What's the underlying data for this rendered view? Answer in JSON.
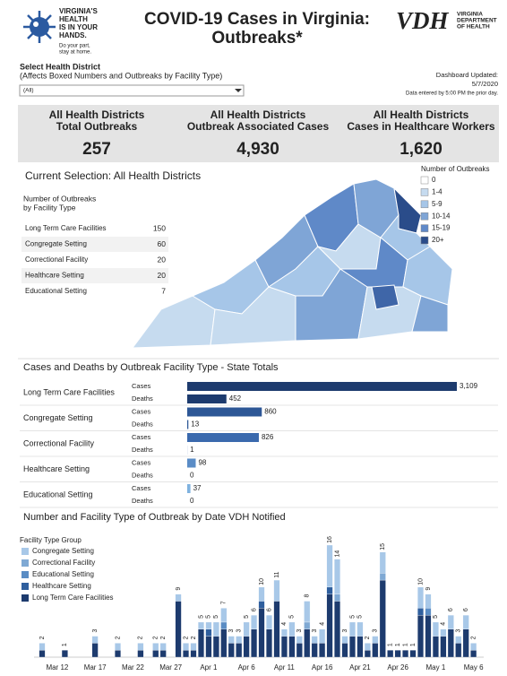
{
  "header": {
    "logo_lines": [
      "VIRGINIA'S",
      "HEALTH",
      "IS IN YOUR",
      "HANDS."
    ],
    "logo_tagline": [
      "Do your part,",
      "stay at home."
    ],
    "title_lines": [
      "COVID-19 Cases in Virginia:",
      "Outbreaks*"
    ],
    "vdh_logo": "VDH",
    "vdh_name": [
      "VIRGINIA",
      "DEPARTMENT",
      "OF HEALTH"
    ]
  },
  "filter": {
    "label": "Select Health District",
    "note": "(Affects Boxed Numbers and Outbreaks by Facility Type)",
    "selected": "(All)"
  },
  "updated": {
    "label": "Dashboard Updated:",
    "date": "5/7/2020",
    "note": "Data entered by 5:00 PM the prior day."
  },
  "kpis": [
    {
      "label_lines": [
        "All Health Districts",
        "Total Outbreaks"
      ],
      "value": "257"
    },
    {
      "label_lines": [
        "All Health Districts",
        "Outbreak Associated Cases"
      ],
      "value": "4,930"
    },
    {
      "label_lines": [
        "All Health Districts",
        "Cases in Healthcare Workers"
      ],
      "value": "1,620"
    }
  ],
  "map": {
    "title": "Current Selection: All Health Districts",
    "legend_title": "Number of Outbreaks",
    "legend": [
      {
        "label": "0",
        "color": "#ffffff"
      },
      {
        "label": "1-4",
        "color": "#c6dbef"
      },
      {
        "label": "5-9",
        "color": "#a6c6e8"
      },
      {
        "label": "10-14",
        "color": "#7fa5d6"
      },
      {
        "label": "15-19",
        "color": "#5f89c8"
      },
      {
        "label": "20+",
        "color": "#2a4c8a"
      }
    ]
  },
  "facility_table": {
    "title_lines": [
      "Number of Outbreaks",
      "by Facility Type"
    ],
    "rows": [
      [
        "Long Term Care Facilities",
        150
      ],
      [
        "Congregate Setting",
        60
      ],
      [
        "Correctional Facility",
        20
      ],
      [
        "Healthcare Setting",
        20
      ],
      [
        "Educational Setting",
        7
      ]
    ]
  },
  "chart_data": [
    {
      "type": "hbar",
      "title": "Cases and Deaths by Outbreak Facility Type - State Totals",
      "categories": [
        "Long Term Care Facilities",
        "Congregate Setting",
        "Correctional Facility",
        "Healthcare Setting",
        "Educational Setting"
      ],
      "colors": [
        "#1d3b6e",
        "#2d5796",
        "#3a69ad",
        "#5a8cc6",
        "#7fb2df"
      ],
      "series": [
        {
          "name": "Cases",
          "values": [
            3109,
            860,
            826,
            98,
            37
          ],
          "value_labels": [
            "3,109",
            "860",
            "826",
            "98",
            "37"
          ]
        },
        {
          "name": "Deaths",
          "values": [
            452,
            13,
            1,
            0,
            0
          ]
        }
      ]
    },
    {
      "type": "stacked_bar",
      "title": "Number and Facility Type of Outbreak by Date VDH Notified",
      "legend_title": "Facility Type Group",
      "categories": [
        null,
        null,
        "Mar 12",
        null,
        null,
        null,
        null,
        "Mar 17",
        null,
        null,
        null,
        null,
        "Mar 22",
        null,
        null,
        null,
        null,
        "Mar 27",
        null,
        null,
        null,
        null,
        "Apr 1",
        null,
        null,
        null,
        null,
        "Apr 6",
        null,
        null,
        null,
        null,
        "Apr 11",
        null,
        null,
        null,
        null,
        "Apr 16",
        null,
        null,
        null,
        null,
        "Apr 21",
        null,
        null,
        null,
        null,
        "Apr 26",
        null,
        null,
        null,
        null,
        "May 1",
        null,
        null,
        null,
        null,
        "May 6",
        null
      ],
      "series": [
        {
          "name": "Congregate Setting",
          "color": "#a8c8e8",
          "values": [
            1,
            0,
            0,
            0,
            0,
            0,
            0,
            1,
            0,
            0,
            1,
            0,
            0,
            1,
            0,
            1,
            1,
            0,
            1,
            1,
            1,
            1,
            1,
            2,
            2,
            1,
            1,
            2,
            2,
            2,
            2,
            3,
            1,
            2,
            1,
            3,
            1,
            2,
            6,
            5,
            1,
            2,
            2,
            1,
            1,
            3,
            0,
            0,
            0,
            0,
            3,
            2,
            2,
            1,
            2,
            1,
            2,
            1,
            0
          ]
        },
        {
          "name": "Correctional Facility",
          "color": "#7fa9d4",
          "values": [
            0,
            0,
            0,
            0,
            0,
            0,
            0,
            0,
            0,
            0,
            0,
            0,
            0,
            0,
            0,
            0,
            0,
            0,
            0,
            0,
            0,
            0,
            0,
            0,
            0,
            0,
            0,
            0,
            0,
            0,
            0,
            0,
            0,
            0,
            0,
            1,
            0,
            0,
            0,
            1,
            0,
            0,
            0,
            0,
            0,
            1,
            0,
            0,
            0,
            0,
            0,
            0,
            0,
            0,
            0,
            0,
            0,
            0,
            0
          ]
        },
        {
          "name": "Educational Setting",
          "color": "#5a8cc4",
          "values": [
            0,
            0,
            0,
            0,
            0,
            0,
            0,
            0,
            0,
            0,
            0,
            0,
            0,
            0,
            0,
            0,
            0,
            0,
            0,
            0,
            0,
            0,
            0,
            0,
            1,
            0,
            0,
            0,
            0,
            0,
            0,
            0,
            0,
            0,
            0,
            0,
            0,
            0,
            0,
            0,
            0,
            0,
            0,
            0,
            0,
            0,
            0,
            0,
            0,
            0,
            0,
            1,
            0,
            0,
            0,
            0,
            0,
            0,
            0
          ]
        },
        {
          "name": "Healthcare Setting",
          "color": "#2f5f9e",
          "values": [
            0,
            0,
            0,
            0,
            0,
            0,
            0,
            0,
            0,
            0,
            0,
            0,
            0,
            0,
            0,
            0,
            0,
            0,
            0,
            0,
            0,
            0,
            1,
            0,
            0,
            0,
            0,
            0,
            0,
            1,
            0,
            0,
            0,
            0,
            0,
            0,
            0,
            0,
            1,
            0,
            0,
            0,
            0,
            0,
            0,
            0,
            0,
            0,
            0,
            0,
            1,
            0,
            0,
            0,
            0,
            0,
            0,
            0,
            0
          ]
        },
        {
          "name": "Long Term Care Facilities",
          "color": "#1d3b6e",
          "values": [
            1,
            0,
            0,
            1,
            0,
            0,
            0,
            2,
            0,
            0,
            1,
            0,
            0,
            1,
            0,
            1,
            1,
            0,
            8,
            1,
            1,
            4,
            3,
            3,
            4,
            2,
            2,
            3,
            4,
            7,
            4,
            8,
            3,
            3,
            2,
            4,
            2,
            2,
            9,
            8,
            2,
            3,
            3,
            1,
            2,
            11,
            1,
            1,
            1,
            1,
            6,
            6,
            3,
            3,
            4,
            2,
            4,
            1,
            0
          ]
        }
      ],
      "totals": [
        2,
        null,
        null,
        1,
        null,
        null,
        null,
        3,
        null,
        null,
        2,
        null,
        null,
        2,
        null,
        2,
        2,
        null,
        9,
        2,
        2,
        5,
        5,
        5,
        7,
        3,
        3,
        5,
        6,
        10,
        6,
        11,
        4,
        5,
        3,
        8,
        3,
        4,
        16,
        14,
        3,
        5,
        5,
        2,
        3,
        15,
        1,
        1,
        1,
        1,
        10,
        9,
        5,
        4,
        6,
        3,
        6,
        2,
        null
      ]
    }
  ]
}
